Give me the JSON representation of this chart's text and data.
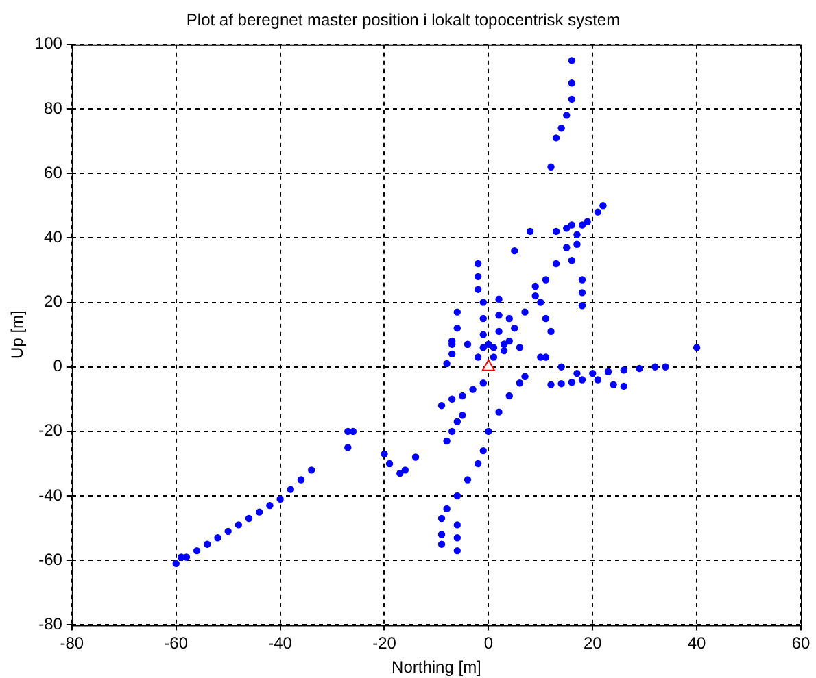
{
  "chart_data": {
    "type": "scatter",
    "title": "Plot af beregnet master position i lokalt topocentrisk system",
    "xlabel": "Northing [m]",
    "ylabel": "Up [m]",
    "xlim": [
      -80,
      60
    ],
    "ylim": [
      -80,
      100
    ],
    "xticks": [
      -80,
      -60,
      -40,
      -20,
      0,
      20,
      40,
      60
    ],
    "yticks": [
      -80,
      -60,
      -40,
      -20,
      0,
      20,
      40,
      60,
      80,
      100
    ],
    "grid": true,
    "marker": "circle",
    "series": [
      {
        "color": "#0000ff",
        "x": [
          -60,
          -59,
          -58,
          -56,
          -54,
          -52,
          -50,
          -48,
          -46,
          -44,
          -42,
          -40,
          -38,
          -36,
          -34,
          -27,
          -26,
          -27,
          -20,
          -19,
          -17,
          -16,
          -14,
          -1,
          -2,
          -4,
          -6,
          -8,
          -9,
          -9,
          -9,
          -6,
          -6,
          -6,
          -5,
          -6,
          -7,
          -8,
          -9,
          -7,
          -5,
          -3,
          -1,
          0,
          2,
          4,
          6,
          7,
          1,
          3,
          5,
          7,
          9,
          11,
          13,
          15,
          17,
          19,
          21,
          22,
          13,
          15,
          16,
          18,
          17,
          16,
          16,
          16,
          16,
          15,
          14,
          13,
          12,
          -2,
          -2,
          -2,
          -1,
          -1,
          -1,
          -1,
          -2,
          -6,
          -6,
          -7,
          -7,
          -8,
          2,
          2,
          2,
          1,
          3,
          4,
          4,
          -7,
          -4,
          0,
          3,
          6,
          8,
          5,
          18,
          18,
          18,
          9,
          10,
          11,
          12,
          10,
          11,
          12,
          14,
          16,
          18,
          21,
          24,
          26,
          14,
          17,
          20,
          23,
          26,
          29,
          32,
          34,
          40
        ],
        "values": [
          -61,
          -59,
          -59,
          -57,
          -55,
          -53,
          -51,
          -49,
          -47,
          -45,
          -43,
          -41,
          -38,
          -35,
          -32,
          -20,
          -20,
          -25,
          -27,
          -30,
          -33,
          -32,
          -28,
          -26,
          -30,
          -35,
          -40,
          -44,
          -47,
          -52,
          -55,
          -49,
          -53,
          -57,
          -15,
          -17,
          -20,
          -23,
          -12,
          -10,
          -9,
          -7,
          -5,
          -20,
          -14,
          -9,
          -5,
          -3,
          3,
          7,
          12,
          17,
          22,
          27,
          32,
          37,
          41,
          45,
          48,
          50,
          42,
          43,
          44,
          44,
          38,
          33,
          95,
          88,
          83,
          78,
          74,
          71,
          62,
          32,
          28,
          24,
          20,
          15,
          10,
          6,
          3,
          17,
          12,
          8,
          4,
          1,
          21,
          16,
          11,
          6,
          5,
          8,
          15,
          7,
          7,
          7,
          7,
          6,
          42,
          36,
          27,
          23,
          19,
          25,
          20,
          15,
          11,
          3,
          3,
          -5.5,
          -5.2,
          -4.8,
          -4,
          -4,
          -5.5,
          -6,
          0,
          -2,
          -2,
          -1.5,
          -1,
          -0.5,
          0,
          0,
          6
        ]
      },
      {
        "color": "#ff0000",
        "marker": "triangle",
        "x": [
          0
        ],
        "values": [
          0
        ]
      }
    ]
  }
}
